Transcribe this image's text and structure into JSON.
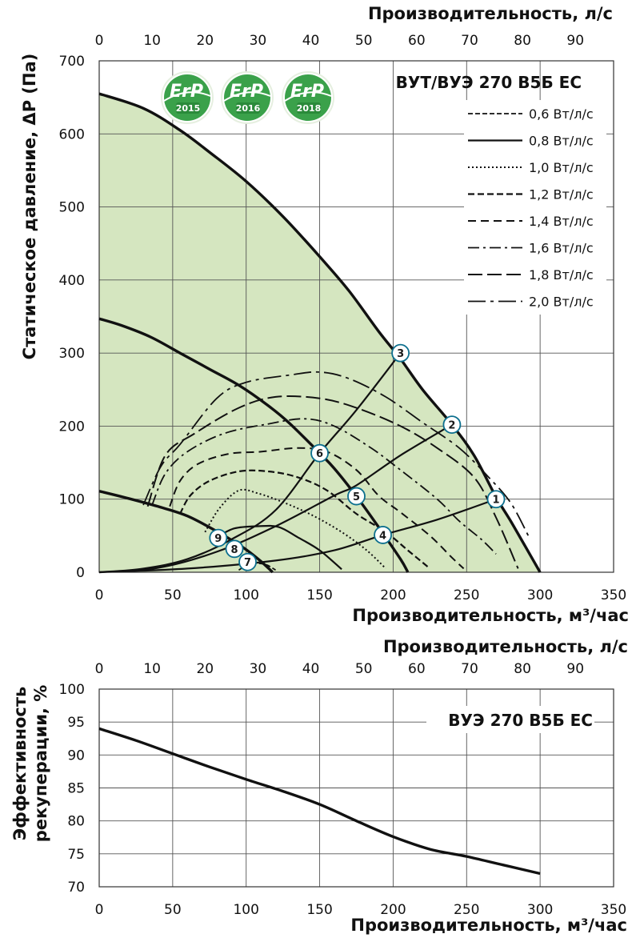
{
  "chart_data": [
    {
      "type": "line",
      "title": "ВУТ/ВУЭ 270 В5Б ЕС",
      "xlabel": "Производительность, м³/час",
      "ylabel": "Статическое давление, ΔP (Па)",
      "x2label": "Производительность, л/с",
      "xlim": [
        0,
        350
      ],
      "ylim": [
        0,
        700
      ],
      "x2lim": [
        0,
        97.22
      ],
      "xticks": [
        "0",
        "50",
        "100",
        "150",
        "200",
        "250",
        "300",
        "350"
      ],
      "yticks": [
        "0",
        "100",
        "200",
        "300",
        "400",
        "500",
        "600",
        "700"
      ],
      "x2ticks": [
        "0",
        "10",
        "20",
        "30",
        "40",
        "50",
        "60",
        "70",
        "80",
        "90"
      ],
      "x2tick_values": [
        0,
        10,
        20,
        30,
        40,
        50,
        60,
        70,
        80,
        90
      ],
      "grid": true,
      "legend_position": "top-right",
      "fill_color": "#d5e6c0",
      "badges": [
        {
          "label": "ErP",
          "year": "2015"
        },
        {
          "label": "ErP",
          "year": "2016"
        },
        {
          "label": "ErP",
          "year": "2018"
        }
      ],
      "fan_curves": [
        {
          "points": [
            [
              0,
              655
            ],
            [
              30,
              635
            ],
            [
              55,
              605
            ],
            [
              75,
              575
            ],
            [
              100,
              535
            ],
            [
              125,
              487
            ],
            [
              150,
              432
            ],
            [
              170,
              385
            ],
            [
              190,
              330
            ],
            [
              205,
              292
            ],
            [
              220,
              250
            ],
            [
              240,
              202
            ],
            [
              255,
              160
            ],
            [
              270,
              103
            ],
            [
              280,
              70
            ],
            [
              290,
              35
            ],
            [
              300,
              0
            ]
          ]
        },
        {
          "points": [
            [
              0,
              347
            ],
            [
              15,
              338
            ],
            [
              35,
              322
            ],
            [
              55,
              300
            ],
            [
              75,
              278
            ],
            [
              95,
              256
            ],
            [
              115,
              228
            ],
            [
              130,
              203
            ],
            [
              150,
              163
            ],
            [
              160,
              142
            ],
            [
              175,
              104
            ],
            [
              190,
              62
            ],
            [
              205,
              18
            ],
            [
              210,
              0
            ]
          ]
        },
        {
          "points": [
            [
              0,
              111
            ],
            [
              20,
              101
            ],
            [
              40,
              90
            ],
            [
              60,
              77
            ],
            [
              80,
              56
            ],
            [
              90,
              44
            ],
            [
              100,
              31
            ],
            [
              110,
              15
            ],
            [
              118,
              0
            ]
          ]
        }
      ],
      "system_curves": [
        {
          "points": [
            [
              0,
              0
            ],
            [
              30,
              5
            ],
            [
              60,
              18
            ],
            [
              90,
              45
            ],
            [
              120,
              85
            ],
            [
              150,
              163
            ],
            [
              175,
              222
            ],
            [
              205,
              300
            ]
          ]
        },
        {
          "points": [
            [
              0,
              0
            ],
            [
              40,
              6
            ],
            [
              80,
              28
            ],
            [
              120,
              63
            ],
            [
              160,
              105
            ],
            [
              175,
              119
            ],
            [
              205,
              160
            ],
            [
              240,
              202
            ]
          ]
        },
        {
          "points": [
            [
              0,
              0
            ],
            [
              60,
              5
            ],
            [
              120,
              16
            ],
            [
              160,
              30
            ],
            [
              193,
              51
            ],
            [
              230,
              72
            ],
            [
              270,
              100
            ]
          ]
        }
      ],
      "sfp_series": [
        {
          "name": "0,6 Вт/л/с",
          "style": "0.6",
          "points": [
            [
              95,
              3
            ],
            [
              101,
              10
            ],
            [
              108,
              12
            ],
            [
              114,
              10
            ],
            [
              120,
              3
            ]
          ]
        },
        {
          "name": "0,8 Вт/л/с",
          "style": "0.8",
          "points": [
            [
              80,
              48
            ],
            [
              92,
              60
            ],
            [
              108,
              63
            ],
            [
              122,
              62
            ],
            [
              135,
              48
            ],
            [
              150,
              30
            ],
            [
              165,
              4
            ]
          ]
        },
        {
          "name": "1,0 Вт/л/с",
          "style": "1.0",
          "points": [
            [
              72,
              55
            ],
            [
              82,
              88
            ],
            [
              95,
              112
            ],
            [
              108,
              108
            ],
            [
              125,
              96
            ],
            [
              145,
              78
            ],
            [
              165,
              55
            ],
            [
              182,
              30
            ],
            [
              195,
              5
            ]
          ]
        },
        {
          "name": "1,2 Вт/л/с",
          "style": "1.2",
          "points": [
            [
              55,
              80
            ],
            [
              62,
              105
            ],
            [
              75,
              125
            ],
            [
              95,
              138
            ],
            [
              115,
              138
            ],
            [
              135,
              130
            ],
            [
              155,
              112
            ],
            [
              175,
              80
            ],
            [
              195,
              55
            ],
            [
              210,
              30
            ],
            [
              225,
              5
            ]
          ]
        },
        {
          "name": "1,4 Вт/л/с",
          "style": "1.4",
          "points": [
            [
              48,
              90
            ],
            [
              55,
              125
            ],
            [
              67,
              148
            ],
            [
              88,
              162
            ],
            [
              110,
              165
            ],
            [
              135,
              170
            ],
            [
              155,
              165
            ],
            [
              175,
              140
            ],
            [
              190,
              105
            ],
            [
              205,
              82
            ],
            [
              225,
              50
            ],
            [
              240,
              20
            ],
            [
              248,
              5
            ]
          ]
        },
        {
          "name": "1,6 Вт/л/с",
          "style": "1.6",
          "points": [
            [
              36,
              92
            ],
            [
              45,
              135
            ],
            [
              60,
              165
            ],
            [
              85,
              190
            ],
            [
              115,
              203
            ],
            [
              140,
              210
            ],
            [
              160,
              200
            ],
            [
              185,
              170
            ],
            [
              205,
              140
            ],
            [
              230,
              100
            ],
            [
              245,
              70
            ],
            [
              260,
              45
            ],
            [
              270,
              25
            ]
          ]
        },
        {
          "name": "1,8 Вт/л/с",
          "style": "1.8",
          "points": [
            [
              33,
              90
            ],
            [
              45,
              160
            ],
            [
              65,
              190
            ],
            [
              95,
              225
            ],
            [
              120,
              240
            ],
            [
              150,
              238
            ],
            [
              175,
              225
            ],
            [
              205,
              200
            ],
            [
              230,
              170
            ],
            [
              255,
              130
            ],
            [
              270,
              75
            ],
            [
              285,
              5
            ]
          ]
        },
        {
          "name": "2,0 Вт/л/с",
          "style": "2.0",
          "points": [
            [
              30,
              92
            ],
            [
              42,
              145
            ],
            [
              55,
              175
            ],
            [
              80,
              238
            ],
            [
              100,
              260
            ],
            [
              130,
              270
            ],
            [
              150,
              274
            ],
            [
              170,
              265
            ],
            [
              195,
              240
            ],
            [
              220,
              205
            ],
            [
              245,
              170
            ],
            [
              265,
              130
            ],
            [
              280,
              95
            ],
            [
              292,
              50
            ]
          ]
        }
      ],
      "operating_points": [
        {
          "label": "1",
          "x": 270,
          "y": 100
        },
        {
          "label": "2",
          "x": 240,
          "y": 202
        },
        {
          "label": "3",
          "x": 205,
          "y": 300
        },
        {
          "label": "4",
          "x": 193,
          "y": 51
        },
        {
          "label": "5",
          "x": 175,
          "y": 104
        },
        {
          "label": "6",
          "x": 150,
          "y": 163
        },
        {
          "label": "7",
          "x": 101,
          "y": 14
        },
        {
          "label": "8",
          "x": 92,
          "y": 32
        },
        {
          "label": "9",
          "x": 81,
          "y": 47
        }
      ]
    },
    {
      "type": "line",
      "title": "ВУЭ 270 В5Б ЕС",
      "xlabel": "Производительность, м³/час",
      "ylabel": [
        "Эффективность",
        "рекуперации, %"
      ],
      "x2label": "Производительность, л/с",
      "xlim": [
        0,
        350
      ],
      "ylim": [
        70,
        100
      ],
      "x2lim": [
        0,
        97.22
      ],
      "xticks": [
        "0",
        "50",
        "100",
        "150",
        "200",
        "250",
        "300",
        "350"
      ],
      "yticks": [
        "70",
        "75",
        "80",
        "85",
        "90",
        "95",
        "100"
      ],
      "x2ticks": [
        "0",
        "10",
        "20",
        "30",
        "40",
        "50",
        "60",
        "70",
        "80",
        "90"
      ],
      "x2tick_values": [
        0,
        10,
        20,
        30,
        40,
        50,
        60,
        70,
        80,
        90
      ],
      "grid": true,
      "series": [
        {
          "x": [
            0,
            25,
            50,
            75,
            100,
            125,
            150,
            175,
            200,
            225,
            250,
            275,
            300
          ],
          "values": [
            94,
            92.2,
            90.2,
            88.2,
            86.3,
            84.5,
            82.5,
            80,
            77.6,
            75.7,
            74.6,
            73.3,
            72
          ]
        }
      ]
    }
  ]
}
